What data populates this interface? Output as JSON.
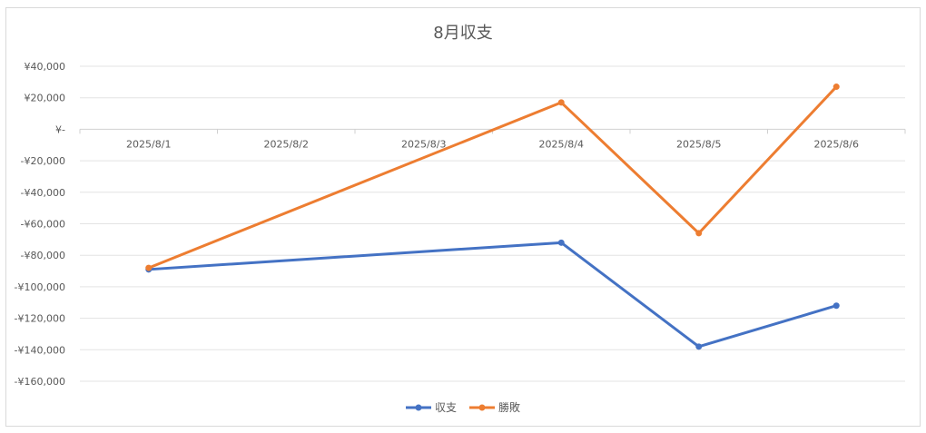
{
  "chart_data": {
    "type": "line",
    "title": "8月収支",
    "categories": [
      "2025/8/1",
      "2025/8/2",
      "2025/8/3",
      "2025/8/4",
      "2025/8/5",
      "2025/8/6"
    ],
    "series": [
      {
        "name": "収支",
        "color": "#4472c4",
        "values": [
          -89000,
          null,
          null,
          -72000,
          -138000,
          -112000
        ]
      },
      {
        "name": "勝敗",
        "color": "#ed7d31",
        "values": [
          -88000,
          null,
          null,
          17000,
          -66000,
          27000
        ]
      }
    ],
    "ylim": [
      -160000,
      40000
    ],
    "y_ticks": [
      40000,
      20000,
      0,
      -20000,
      -40000,
      -60000,
      -80000,
      -100000,
      -120000,
      -140000,
      -160000
    ],
    "y_tick_labels": [
      "¥40,000",
      "¥20,000",
      "¥-",
      "-¥20,000",
      "-¥40,000",
      "-¥60,000",
      "-¥80,000",
      "-¥100,000",
      "-¥120,000",
      "-¥140,000",
      "-¥160,000"
    ],
    "connect_gaps": true,
    "grid": true,
    "legend_position": "bottom"
  }
}
